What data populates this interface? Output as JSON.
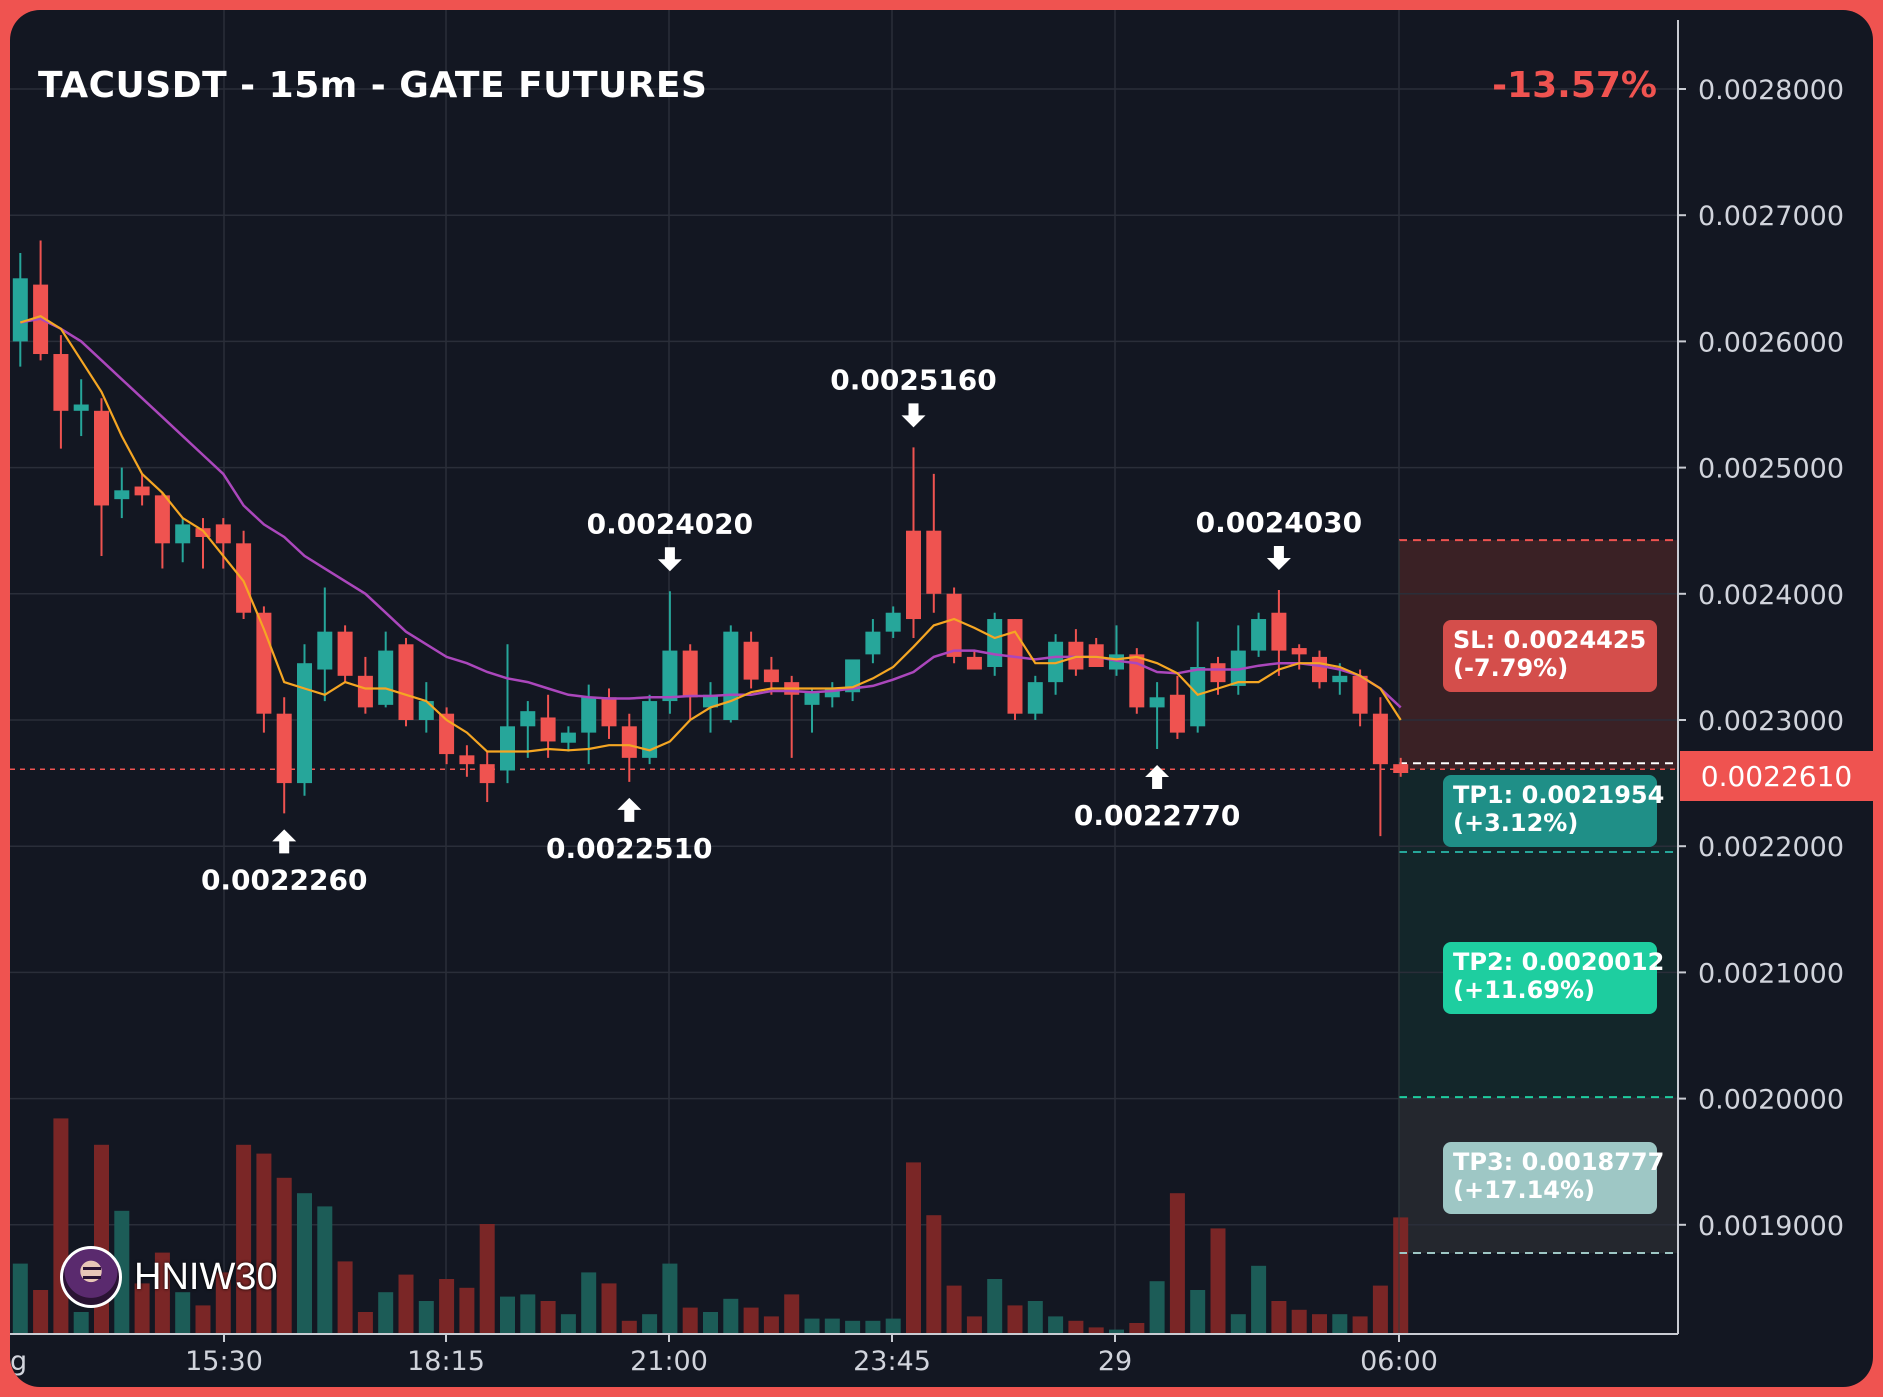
{
  "header": {
    "title": "TACUSDT - 15m - GATE FUTURES",
    "change": "-13.57%"
  },
  "colors": {
    "bull": "#26a69a",
    "bear": "#ef5350",
    "ema_fast": "#f5a623",
    "ema_slow": "#ab47bc",
    "background": "#131722",
    "grid": "#2a2e39",
    "sl_zone": "#3a2125",
    "tp_zone": "#13262a",
    "tp3_zone": "#24272e"
  },
  "price_badge": "0.0022610",
  "trade_levels": {
    "sl": {
      "line1": "SL: 0.0024425",
      "line2": "(-7.79%)"
    },
    "tp1": {
      "line1": "TP1: 0.0021954",
      "line2": "(+3.12%)"
    },
    "tp2": {
      "line1": "TP2: 0.0020012",
      "line2": "(+11.69%)"
    },
    "tp3": {
      "line1": "TP3: 0.0018777",
      "line2": "(+17.14%)"
    }
  },
  "brand": {
    "name": "HNIW30"
  },
  "chart_data": {
    "type": "candlestick",
    "title": "TACUSDT - 15m - GATE FUTURES",
    "y_axis": {
      "range": [
        0.00182,
        0.00285
      ],
      "ticks": [
        "0.0028000",
        "0.0027000",
        "0.0026000",
        "0.0025000",
        "0.0024000",
        "0.0023000",
        "0.0022000",
        "0.0021000",
        "0.0020000",
        "0.0019000"
      ]
    },
    "x_axis": {
      "ticks": [
        "15:30",
        "18:15",
        "21:00",
        "23:45",
        "29",
        "06:00"
      ],
      "partial_left_label": "g"
    },
    "candles": [
      {
        "o": 0.0026,
        "h": 0.00267,
        "l": 0.00258,
        "c": 0.00265
      },
      {
        "o": 0.002645,
        "h": 0.00268,
        "l": 0.002585,
        "c": 0.00259
      },
      {
        "o": 0.00259,
        "h": 0.002605,
        "l": 0.002515,
        "c": 0.002545
      },
      {
        "o": 0.002545,
        "h": 0.00257,
        "l": 0.002525,
        "c": 0.00255
      },
      {
        "o": 0.002545,
        "h": 0.002555,
        "l": 0.00243,
        "c": 0.00247
      },
      {
        "o": 0.002475,
        "h": 0.0025,
        "l": 0.00246,
        "c": 0.002482
      },
      {
        "o": 0.002485,
        "h": 0.002495,
        "l": 0.00247,
        "c": 0.002478
      },
      {
        "o": 0.002478,
        "h": 0.00248,
        "l": 0.00242,
        "c": 0.00244
      },
      {
        "o": 0.00244,
        "h": 0.00246,
        "l": 0.002425,
        "c": 0.002455
      },
      {
        "o": 0.002452,
        "h": 0.00246,
        "l": 0.00242,
        "c": 0.002445
      },
      {
        "o": 0.002455,
        "h": 0.00246,
        "l": 0.00242,
        "c": 0.00244
      },
      {
        "o": 0.00244,
        "h": 0.00245,
        "l": 0.00238,
        "c": 0.002385
      },
      {
        "o": 0.002385,
        "h": 0.00239,
        "l": 0.00229,
        "c": 0.002305
      },
      {
        "o": 0.002305,
        "h": 0.002318,
        "l": 0.002226,
        "c": 0.00225
      },
      {
        "o": 0.00225,
        "h": 0.00236,
        "l": 0.00224,
        "c": 0.002345
      },
      {
        "o": 0.00234,
        "h": 0.002405,
        "l": 0.002315,
        "c": 0.00237
      },
      {
        "o": 0.00237,
        "h": 0.002375,
        "l": 0.00233,
        "c": 0.002335
      },
      {
        "o": 0.002335,
        "h": 0.00235,
        "l": 0.002305,
        "c": 0.00231
      },
      {
        "o": 0.002312,
        "h": 0.00237,
        "l": 0.00231,
        "c": 0.002355
      },
      {
        "o": 0.00236,
        "h": 0.002365,
        "l": 0.002295,
        "c": 0.0023
      },
      {
        "o": 0.0023,
        "h": 0.00233,
        "l": 0.00229,
        "c": 0.002315
      },
      {
        "o": 0.002305,
        "h": 0.00231,
        "l": 0.002265,
        "c": 0.002273
      },
      {
        "o": 0.002272,
        "h": 0.00228,
        "l": 0.002255,
        "c": 0.002265
      },
      {
        "o": 0.002265,
        "h": 0.002275,
        "l": 0.002235,
        "c": 0.00225
      },
      {
        "o": 0.00226,
        "h": 0.00236,
        "l": 0.00225,
        "c": 0.002295
      },
      {
        "o": 0.002295,
        "h": 0.002315,
        "l": 0.00227,
        "c": 0.002307
      },
      {
        "o": 0.002302,
        "h": 0.00232,
        "l": 0.00227,
        "c": 0.002283
      },
      {
        "o": 0.002282,
        "h": 0.002295,
        "l": 0.002275,
        "c": 0.00229
      },
      {
        "o": 0.00229,
        "h": 0.002328,
        "l": 0.002265,
        "c": 0.002318
      },
      {
        "o": 0.002318,
        "h": 0.002325,
        "l": 0.002285,
        "c": 0.002295
      },
      {
        "o": 0.002295,
        "h": 0.002305,
        "l": 0.002251,
        "c": 0.00227
      },
      {
        "o": 0.00227,
        "h": 0.00232,
        "l": 0.002265,
        "c": 0.002315
      },
      {
        "o": 0.002315,
        "h": 0.002402,
        "l": 0.002305,
        "c": 0.002355
      },
      {
        "o": 0.002355,
        "h": 0.00236,
        "l": 0.0023,
        "c": 0.002318
      },
      {
        "o": 0.00231,
        "h": 0.00233,
        "l": 0.00229,
        "c": 0.00232
      },
      {
        "o": 0.0023,
        "h": 0.002375,
        "l": 0.002298,
        "c": 0.00237
      },
      {
        "o": 0.002362,
        "h": 0.00237,
        "l": 0.002325,
        "c": 0.002332
      },
      {
        "o": 0.00234,
        "h": 0.00235,
        "l": 0.00232,
        "c": 0.00233
      },
      {
        "o": 0.00233,
        "h": 0.002335,
        "l": 0.00227,
        "c": 0.00232
      },
      {
        "o": 0.002312,
        "h": 0.002325,
        "l": 0.00229,
        "c": 0.002322
      },
      {
        "o": 0.002318,
        "h": 0.00233,
        "l": 0.00231,
        "c": 0.002325
      },
      {
        "o": 0.002322,
        "h": 0.002345,
        "l": 0.002315,
        "c": 0.002348
      },
      {
        "o": 0.002352,
        "h": 0.00238,
        "l": 0.002345,
        "c": 0.00237
      },
      {
        "o": 0.00237,
        "h": 0.00239,
        "l": 0.002365,
        "c": 0.002385
      },
      {
        "o": 0.00245,
        "h": 0.002516,
        "l": 0.002365,
        "c": 0.00238
      },
      {
        "o": 0.00245,
        "h": 0.002495,
        "l": 0.002385,
        "c": 0.0024
      },
      {
        "o": 0.0024,
        "h": 0.002405,
        "l": 0.002345,
        "c": 0.00235
      },
      {
        "o": 0.00235,
        "h": 0.002355,
        "l": 0.00234,
        "c": 0.00234
      },
      {
        "o": 0.002342,
        "h": 0.002385,
        "l": 0.002335,
        "c": 0.00238
      },
      {
        "o": 0.00238,
        "h": 0.00238,
        "l": 0.0023,
        "c": 0.002305
      },
      {
        "o": 0.002305,
        "h": 0.002335,
        "l": 0.0023,
        "c": 0.00233
      },
      {
        "o": 0.00233,
        "h": 0.002368,
        "l": 0.00232,
        "c": 0.002362
      },
      {
        "o": 0.002362,
        "h": 0.002372,
        "l": 0.002335,
        "c": 0.00234
      },
      {
        "o": 0.00236,
        "h": 0.002365,
        "l": 0.002345,
        "c": 0.002342
      },
      {
        "o": 0.00234,
        "h": 0.002375,
        "l": 0.002335,
        "c": 0.002352
      },
      {
        "o": 0.002352,
        "h": 0.002357,
        "l": 0.002305,
        "c": 0.00231
      },
      {
        "o": 0.00231,
        "h": 0.00233,
        "l": 0.002277,
        "c": 0.002318
      },
      {
        "o": 0.00232,
        "h": 0.002335,
        "l": 0.002285,
        "c": 0.00229
      },
      {
        "o": 0.002295,
        "h": 0.002378,
        "l": 0.00229,
        "c": 0.002342
      },
      {
        "o": 0.002345,
        "h": 0.00235,
        "l": 0.00232,
        "c": 0.00233
      },
      {
        "o": 0.002327,
        "h": 0.002375,
        "l": 0.00232,
        "c": 0.002355
      },
      {
        "o": 0.002355,
        "h": 0.002385,
        "l": 0.00235,
        "c": 0.00238
      },
      {
        "o": 0.002385,
        "h": 0.002403,
        "l": 0.002335,
        "c": 0.002355
      },
      {
        "o": 0.002357,
        "h": 0.00236,
        "l": 0.00234,
        "c": 0.002352
      },
      {
        "o": 0.00235,
        "h": 0.002355,
        "l": 0.002325,
        "c": 0.00233
      },
      {
        "o": 0.00233,
        "h": 0.002345,
        "l": 0.00232,
        "c": 0.002335
      },
      {
        "o": 0.002335,
        "h": 0.00234,
        "l": 0.002295,
        "c": 0.002305
      },
      {
        "o": 0.002305,
        "h": 0.002318,
        "l": 0.002208,
        "c": 0.002265
      },
      {
        "o": 0.002265,
        "h": 0.00227,
        "l": 0.002255,
        "c": 0.002258
      }
    ],
    "volume": [
      0.32,
      0.2,
      0.98,
      0.1,
      0.86,
      0.56,
      0.23,
      0.37,
      0.19,
      0.13,
      0.28,
      0.86,
      0.82,
      0.71,
      0.64,
      0.58,
      0.33,
      0.1,
      0.19,
      0.27,
      0.15,
      0.25,
      0.21,
      0.5,
      0.17,
      0.18,
      0.15,
      0.09,
      0.28,
      0.23,
      0.06,
      0.09,
      0.32,
      0.12,
      0.1,
      0.16,
      0.12,
      0.08,
      0.18,
      0.07,
      0.07,
      0.06,
      0.06,
      0.07,
      0.78,
      0.54,
      0.22,
      0.08,
      0.25,
      0.13,
      0.15,
      0.08,
      0.06,
      0.03,
      0.02,
      0.05,
      0.24,
      0.64,
      0.2,
      0.48,
      0.09,
      0.31,
      0.15,
      0.11,
      0.09,
      0.09,
      0.08,
      0.22,
      0.53
    ],
    "ema_fast": [
      0.002615,
      0.00262,
      0.00261,
      0.002585,
      0.00256,
      0.002525,
      0.002495,
      0.00248,
      0.00246,
      0.00245,
      0.00243,
      0.00241,
      0.002372,
      0.00233,
      0.002325,
      0.00232,
      0.00233,
      0.002325,
      0.002325,
      0.00232,
      0.002315,
      0.0023,
      0.00229,
      0.002275,
      0.002275,
      0.002275,
      0.002277,
      0.002276,
      0.002277,
      0.00228,
      0.00228,
      0.002276,
      0.002283,
      0.0023,
      0.00231,
      0.002315,
      0.002322,
      0.002325,
      0.002325,
      0.002325,
      0.002325,
      0.002326,
      0.002333,
      0.002342,
      0.002358,
      0.002375,
      0.00238,
      0.002373,
      0.002365,
      0.00237,
      0.002345,
      0.002345,
      0.00235,
      0.00235,
      0.002348,
      0.00235,
      0.002345,
      0.002337,
      0.00232,
      0.002325,
      0.00233,
      0.00233,
      0.00234,
      0.002345,
      0.002345,
      0.002342,
      0.002335,
      0.002325,
      0.0023
    ],
    "ema_slow": [
      0.002615,
      0.002618,
      0.00261,
      0.0026,
      0.002585,
      0.00257,
      0.002555,
      0.00254,
      0.002525,
      0.00251,
      0.002495,
      0.00247,
      0.002455,
      0.002445,
      0.00243,
      0.00242,
      0.00241,
      0.0024,
      0.002385,
      0.00237,
      0.00236,
      0.00235,
      0.002345,
      0.002338,
      0.002333,
      0.00233,
      0.002325,
      0.00232,
      0.002318,
      0.002317,
      0.002317,
      0.002318,
      0.002318,
      0.002319,
      0.002319,
      0.00232,
      0.00232,
      0.002323,
      0.002323,
      0.002322,
      0.002323,
      0.002325,
      0.002327,
      0.002332,
      0.002338,
      0.00235,
      0.002355,
      0.002355,
      0.002352,
      0.00235,
      0.002348,
      0.00235,
      0.00235,
      0.00235,
      0.002347,
      0.002345,
      0.002338,
      0.002337,
      0.00234,
      0.00234,
      0.00234,
      0.002343,
      0.002345,
      0.002345,
      0.002343,
      0.00234,
      0.002335,
      0.002325,
      0.00231
    ],
    "pivot_labels": [
      {
        "i": 13,
        "type": "low",
        "price": 0.002226,
        "text": "0.0022260"
      },
      {
        "i": 30,
        "type": "low",
        "price": 0.002251,
        "text": "0.0022510"
      },
      {
        "i": 32,
        "type": "high",
        "price": 0.002402,
        "text": "0.0024020"
      },
      {
        "i": 44,
        "type": "high",
        "price": 0.002516,
        "text": "0.0025160"
      },
      {
        "i": 56,
        "type": "low",
        "price": 0.002277,
        "text": "0.0022770"
      },
      {
        "i": 62,
        "type": "high",
        "price": 0.002403,
        "text": "0.0024030"
      }
    ],
    "current_price": 0.002261,
    "levels": {
      "sl": 0.0024425,
      "tp1": 0.0021954,
      "tp2": 0.0020012,
      "tp3": 0.0018777
    },
    "grid": true
  }
}
